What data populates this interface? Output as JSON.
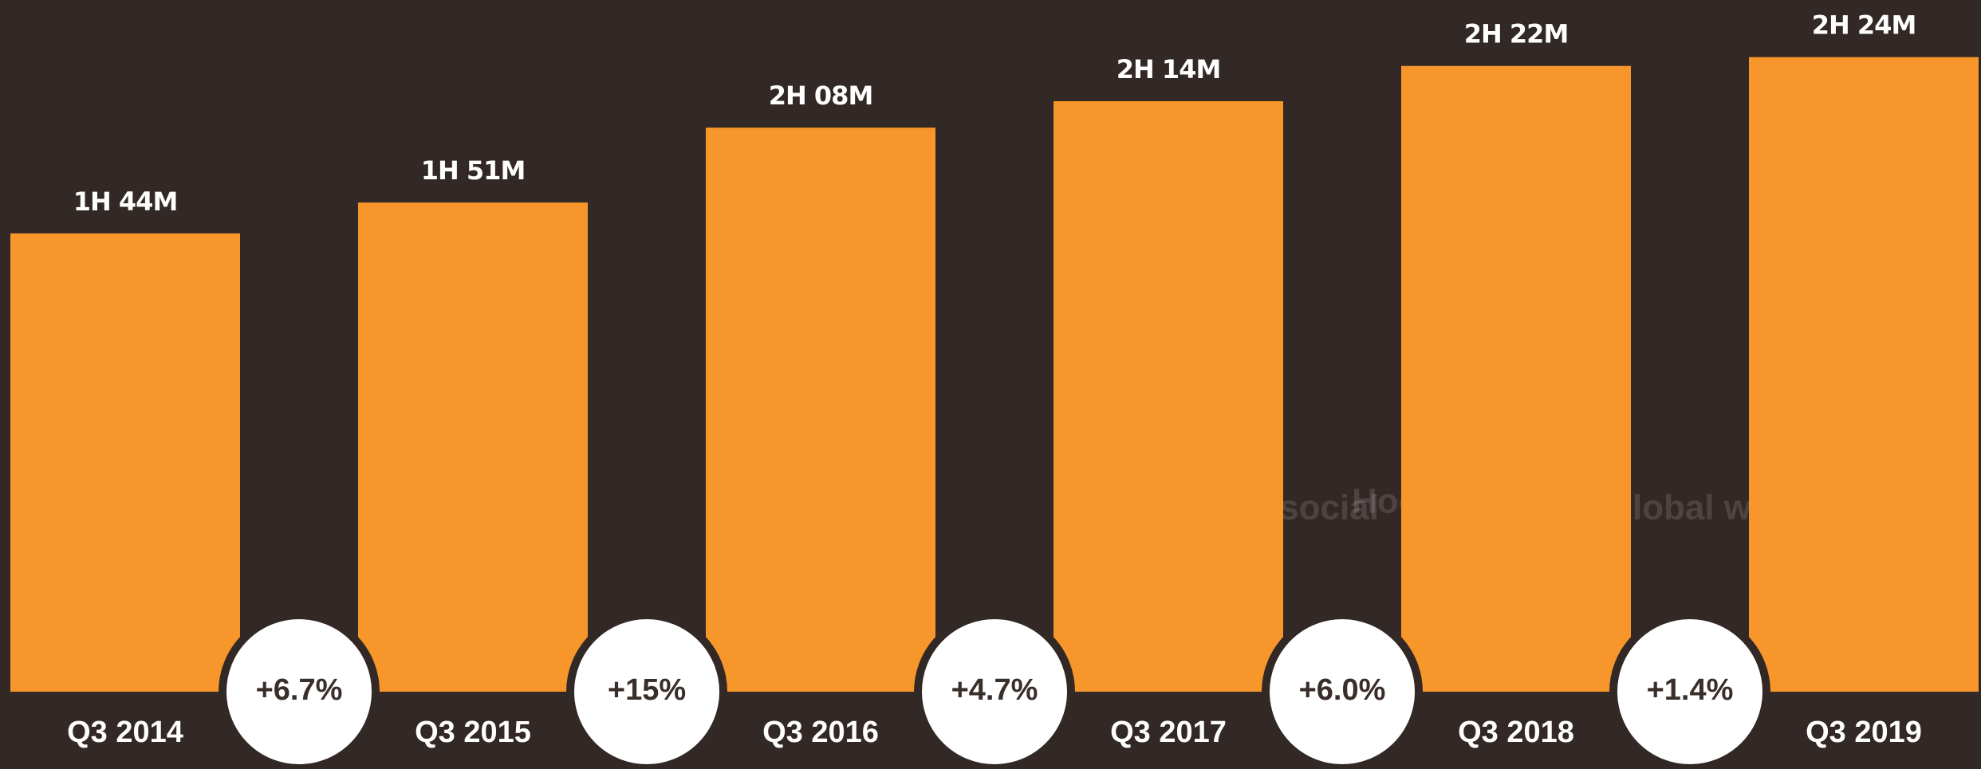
{
  "chart_data": {
    "type": "bar",
    "categories": [
      "Q3 2014",
      "Q3 2015",
      "Q3 2016",
      "Q3 2017",
      "Q3 2018",
      "Q3 2019"
    ],
    "values": [
      104,
      111,
      128,
      134,
      142,
      144
    ],
    "value_labels": [
      "1H 44M",
      "1H 51M",
      "2H 08M",
      "2H 14M",
      "2H 22M",
      "2H 24M"
    ],
    "color": "#f7962a",
    "annotations": [
      "+6.7%",
      "+15%",
      "+4.7%",
      "+6.0%",
      "+1.4%"
    ],
    "watermarks": [
      "we are social",
      "Hootsuite",
      "global web index"
    ]
  }
}
